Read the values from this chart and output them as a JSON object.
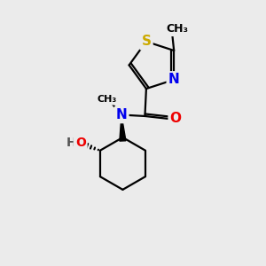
{
  "background_color": "#ebebeb",
  "atom_colors": {
    "S": "#ccaa00",
    "N": "#0000ee",
    "O": "#ee0000",
    "C": "#000000",
    "H": "#555555"
  },
  "bond_color": "#000000",
  "bond_width": 1.6,
  "font_size_atoms": 11,
  "font_size_methyl": 9,
  "fig_w": 3.0,
  "fig_h": 3.0,
  "dpi": 100,
  "xlim": [
    0,
    10
  ],
  "ylim": [
    0,
    10
  ]
}
